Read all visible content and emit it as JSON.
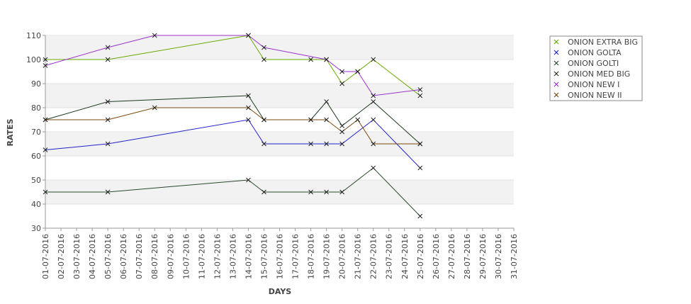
{
  "chart_data": {
    "type": "line",
    "xlabel": "DAYS",
    "ylabel": "RATES",
    "ylim": [
      30,
      110
    ],
    "yticks": [
      30,
      40,
      50,
      60,
      70,
      80,
      90,
      100,
      110
    ],
    "x_tick_labels": [
      "01-07-2016",
      "02-07-2016",
      "03-07-2016",
      "04-07-2016",
      "05-07-2016",
      "06-07-2016",
      "07-07-2016",
      "08-07-2016",
      "09-07-2016",
      "10-07-2016",
      "11-07-2016",
      "12-07-2016",
      "13-07-2016",
      "14-07-2016",
      "15-07-2016",
      "16-07-2016",
      "17-07-2016",
      "18-07-2016",
      "19-07-2016",
      "20-07-2016",
      "21-07-2016",
      "22-07-2016",
      "23-07-2016",
      "24-07-2016",
      "25-07-2016",
      "26-07-2016",
      "27-07-2016",
      "28-07-2016",
      "29-07-2016",
      "30-07-2016",
      "31-07-2016"
    ],
    "grid": "alternating horizontal bands",
    "legend_position": "right",
    "series": [
      {
        "name": "ONION EXTRA BIG",
        "color": "#66aa00",
        "x": [
          "01-07-2016",
          "05-07-2016",
          "14-07-2016",
          "15-07-2016",
          "18-07-2016",
          "19-07-2016",
          "20-07-2016",
          "21-07-2016",
          "22-07-2016",
          "25-07-2016"
        ],
        "y": [
          100,
          100,
          110,
          100,
          100,
          100,
          90,
          95,
          100,
          85
        ]
      },
      {
        "name": "ONION GOLTA",
        "color": "#2222cc",
        "x": [
          "01-07-2016",
          "05-07-2016",
          "14-07-2016",
          "15-07-2016",
          "18-07-2016",
          "19-07-2016",
          "20-07-2016",
          "22-07-2016",
          "25-07-2016"
        ],
        "y": [
          62.5,
          65,
          75,
          65,
          65,
          65,
          65,
          75,
          55
        ]
      },
      {
        "name": "ONION GOLTI",
        "color": "#2b4a2b",
        "x": [
          "01-07-2016",
          "05-07-2016",
          "14-07-2016",
          "15-07-2016",
          "18-07-2016",
          "19-07-2016",
          "20-07-2016",
          "22-07-2016",
          "25-07-2016"
        ],
        "y": [
          45,
          45,
          50,
          45,
          45,
          45,
          45,
          55,
          35
        ]
      },
      {
        "name": "ONION MED BIG",
        "color": "#1e3a1e",
        "x": [
          "01-07-2016",
          "05-07-2016",
          "14-07-2016",
          "15-07-2016",
          "18-07-2016",
          "19-07-2016",
          "20-07-2016",
          "22-07-2016",
          "25-07-2016"
        ],
        "y": [
          75,
          82.5,
          85,
          75,
          75,
          82.5,
          72.5,
          82.5,
          65
        ]
      },
      {
        "name": "ONION NEW I",
        "color": "#9933cc",
        "x": [
          "01-07-2016",
          "05-07-2016",
          "08-07-2016",
          "14-07-2016",
          "15-07-2016",
          "19-07-2016",
          "20-07-2016",
          "21-07-2016",
          "22-07-2016",
          "25-07-2016"
        ],
        "y": [
          97.5,
          105,
          110,
          110,
          105,
          100,
          95,
          95,
          85,
          87.5
        ]
      },
      {
        "name": "ONION NEW II",
        "color": "#7a4a10",
        "x": [
          "01-07-2016",
          "05-07-2016",
          "08-07-2016",
          "14-07-2016",
          "15-07-2016",
          "18-07-2016",
          "19-07-2016",
          "20-07-2016",
          "21-07-2016",
          "22-07-2016",
          "25-07-2016"
        ],
        "y": [
          75,
          75,
          80,
          80,
          75,
          75,
          75,
          70,
          75,
          65,
          65
        ]
      }
    ]
  }
}
